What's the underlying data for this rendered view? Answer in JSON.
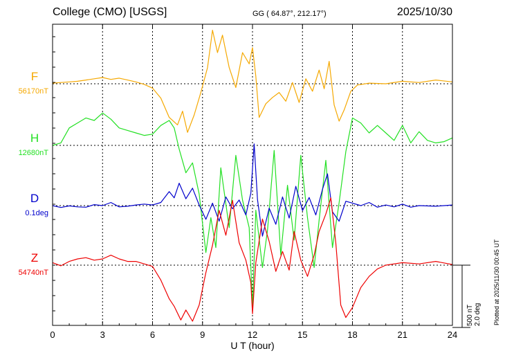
{
  "header": {
    "station": "College (CMO)  [USGS]",
    "coords": "GG ( 64.87°, 212.17°)",
    "date": "2025/10/30"
  },
  "plotted_note": "Plotted at 2025/11/30 00:45 UT",
  "chart_data": {
    "type": "line",
    "xlabel": "U T (hour)",
    "xlim": [
      0,
      24
    ],
    "xticks": [
      0,
      3,
      6,
      9,
      12,
      15,
      18,
      21,
      24
    ],
    "grid": true,
    "scale_bar": {
      "label_nT": "500 nT",
      "label_deg": "2.0 deg",
      "nT": 500,
      "deg": 2.0
    },
    "series": [
      {
        "name": "F",
        "baseline_label": "56170nT",
        "baseline": 56170,
        "unit": "nT",
        "color": "#f5a800",
        "points": [
          [
            0,
            56175
          ],
          [
            0.5,
            56180
          ],
          [
            1,
            56185
          ],
          [
            1.5,
            56190
          ],
          [
            2,
            56200
          ],
          [
            2.5,
            56210
          ],
          [
            3,
            56220
          ],
          [
            3.5,
            56205
          ],
          [
            4,
            56215
          ],
          [
            4.5,
            56200
          ],
          [
            5,
            56185
          ],
          [
            5.5,
            56165
          ],
          [
            6,
            56135
          ],
          [
            6.5,
            56055
          ],
          [
            7,
            55900
          ],
          [
            7.5,
            55840
          ],
          [
            7.8,
            55950
          ],
          [
            8.1,
            55780
          ],
          [
            8.5,
            55920
          ],
          [
            8.9,
            56100
          ],
          [
            9.3,
            56300
          ],
          [
            9.6,
            56600
          ],
          [
            9.9,
            56420
          ],
          [
            10.2,
            56560
          ],
          [
            10.6,
            56300
          ],
          [
            11,
            56140
          ],
          [
            11.4,
            56420
          ],
          [
            11.8,
            56330
          ],
          [
            12,
            56460
          ],
          [
            12.2,
            56230
          ],
          [
            12.4,
            55900
          ],
          [
            12.8,
            56010
          ],
          [
            13.2,
            56060
          ],
          [
            13.6,
            56100
          ],
          [
            14,
            56030
          ],
          [
            14.4,
            56180
          ],
          [
            14.8,
            56020
          ],
          [
            15.2,
            56210
          ],
          [
            15.6,
            56110
          ],
          [
            16,
            56280
          ],
          [
            16.3,
            56130
          ],
          [
            16.6,
            56350
          ],
          [
            16.9,
            56000
          ],
          [
            17.2,
            55870
          ],
          [
            17.5,
            55960
          ],
          [
            17.9,
            56110
          ],
          [
            18.3,
            56160
          ],
          [
            19,
            56175
          ],
          [
            20,
            56170
          ],
          [
            21,
            56190
          ],
          [
            22,
            56180
          ],
          [
            23,
            56200
          ],
          [
            24,
            56185
          ]
        ]
      },
      {
        "name": "H",
        "baseline_label": "12680nT",
        "baseline": 12680,
        "unit": "nT",
        "color": "#22e022",
        "points": [
          [
            0,
            12680
          ],
          [
            0.5,
            12700
          ],
          [
            1,
            12820
          ],
          [
            1.5,
            12860
          ],
          [
            2,
            12900
          ],
          [
            2.5,
            12880
          ],
          [
            3,
            12940
          ],
          [
            3.5,
            12890
          ],
          [
            4,
            12820
          ],
          [
            4.5,
            12800
          ],
          [
            5,
            12780
          ],
          [
            5.5,
            12760
          ],
          [
            6,
            12770
          ],
          [
            6.5,
            12840
          ],
          [
            7,
            12880
          ],
          [
            7.3,
            12820
          ],
          [
            7.6,
            12650
          ],
          [
            8,
            12460
          ],
          [
            8.4,
            12540
          ],
          [
            8.8,
            12290
          ],
          [
            9.2,
            11820
          ],
          [
            9.5,
            12100
          ],
          [
            9.8,
            11860
          ],
          [
            10.1,
            12500
          ],
          [
            10.6,
            12020
          ],
          [
            11,
            12600
          ],
          [
            11.4,
            12240
          ],
          [
            11.8,
            12020
          ],
          [
            12,
            11370
          ],
          [
            12.2,
            12160
          ],
          [
            12.6,
            11700
          ],
          [
            12.9,
            12000
          ],
          [
            13.3,
            12640
          ],
          [
            13.7,
            11800
          ],
          [
            14.1,
            12360
          ],
          [
            14.5,
            11920
          ],
          [
            14.9,
            12600
          ],
          [
            15.3,
            12100
          ],
          [
            15.7,
            11700
          ],
          [
            16,
            12080
          ],
          [
            16.4,
            12560
          ],
          [
            16.8,
            11860
          ],
          [
            17.2,
            12220
          ],
          [
            17.6,
            12630
          ],
          [
            18,
            12900
          ],
          [
            18.5,
            12860
          ],
          [
            19,
            12780
          ],
          [
            19.5,
            12840
          ],
          [
            20,
            12780
          ],
          [
            20.5,
            12720
          ],
          [
            21,
            12840
          ],
          [
            21.5,
            12700
          ],
          [
            22,
            12790
          ],
          [
            22.5,
            12720
          ],
          [
            23,
            12700
          ],
          [
            23.5,
            12710
          ],
          [
            24,
            12740
          ]
        ]
      },
      {
        "name": "D",
        "baseline_label": "0.1deg",
        "baseline": 0.1,
        "unit": "deg",
        "color": "#0000cc",
        "points": [
          [
            0,
            0.1
          ],
          [
            0.5,
            0.04
          ],
          [
            1,
            0.09
          ],
          [
            1.5,
            0.06
          ],
          [
            2,
            0.05
          ],
          [
            2.5,
            0.13
          ],
          [
            3,
            0.1
          ],
          [
            3.5,
            0.2
          ],
          [
            4,
            0.06
          ],
          [
            4.5,
            0.08
          ],
          [
            5,
            0.12
          ],
          [
            5.5,
            0.15
          ],
          [
            6,
            0.12
          ],
          [
            6.5,
            0.2
          ],
          [
            7,
            0.55
          ],
          [
            7.3,
            0.35
          ],
          [
            7.6,
            0.82
          ],
          [
            8,
            0.32
          ],
          [
            8.4,
            0.66
          ],
          [
            8.8,
            0.12
          ],
          [
            9.2,
            -0.34
          ],
          [
            9.6,
            0.18
          ],
          [
            10,
            -0.4
          ],
          [
            10.4,
            0.38
          ],
          [
            10.8,
            0.0
          ],
          [
            11.2,
            0.28
          ],
          [
            11.6,
            -0.2
          ],
          [
            11.9,
            0.5
          ],
          [
            12.1,
            2.08
          ],
          [
            12.3,
            0.3
          ],
          [
            12.6,
            -0.88
          ],
          [
            13,
            0.02
          ],
          [
            13.4,
            -0.5
          ],
          [
            13.8,
            0.38
          ],
          [
            14.2,
            -0.3
          ],
          [
            14.6,
            0.72
          ],
          [
            15,
            -0.06
          ],
          [
            15.4,
            0.36
          ],
          [
            15.8,
            -0.2
          ],
          [
            16.2,
            0.62
          ],
          [
            16.5,
            1.12
          ],
          [
            16.8,
            -0.1
          ],
          [
            17.2,
            -0.4
          ],
          [
            17.6,
            0.24
          ],
          [
            18,
            0.18
          ],
          [
            18.5,
            0.1
          ],
          [
            19,
            0.2
          ],
          [
            19.5,
            0.05
          ],
          [
            20,
            0.12
          ],
          [
            20.5,
            0.06
          ],
          [
            21,
            0.15
          ],
          [
            21.5,
            0.05
          ],
          [
            22,
            0.1
          ],
          [
            23,
            0.08
          ],
          [
            24,
            0.12
          ]
        ]
      },
      {
        "name": "Z",
        "baseline_label": "54740nT",
        "baseline": 54740,
        "unit": "nT",
        "color": "#ee0000",
        "points": [
          [
            0,
            54760
          ],
          [
            0.5,
            54735
          ],
          [
            1,
            54770
          ],
          [
            1.5,
            54790
          ],
          [
            2,
            54800
          ],
          [
            2.5,
            54780
          ],
          [
            3,
            54790
          ],
          [
            3.5,
            54820
          ],
          [
            4,
            54790
          ],
          [
            4.5,
            54770
          ],
          [
            5,
            54770
          ],
          [
            5.5,
            54750
          ],
          [
            6,
            54730
          ],
          [
            6.5,
            54620
          ],
          [
            7,
            54470
          ],
          [
            7.3,
            54410
          ],
          [
            7.7,
            54300
          ],
          [
            8,
            54380
          ],
          [
            8.4,
            54290
          ],
          [
            8.8,
            54420
          ],
          [
            9.2,
            54680
          ],
          [
            9.6,
            54900
          ],
          [
            10,
            55180
          ],
          [
            10.4,
            54980
          ],
          [
            10.8,
            55260
          ],
          [
            11.2,
            54920
          ],
          [
            11.6,
            54780
          ],
          [
            11.9,
            54600
          ],
          [
            12,
            54350
          ],
          [
            12.2,
            54760
          ],
          [
            12.6,
            55110
          ],
          [
            13,
            54930
          ],
          [
            13.4,
            54690
          ],
          [
            13.8,
            54850
          ],
          [
            14.2,
            54700
          ],
          [
            14.5,
            55010
          ],
          [
            14.9,
            54780
          ],
          [
            15.3,
            54650
          ],
          [
            15.7,
            54820
          ],
          [
            16,
            55010
          ],
          [
            16.4,
            55150
          ],
          [
            16.7,
            55280
          ],
          [
            17,
            54920
          ],
          [
            17.3,
            54420
          ],
          [
            17.6,
            54320
          ],
          [
            18,
            54400
          ],
          [
            18.5,
            54560
          ],
          [
            19,
            54650
          ],
          [
            19.5,
            54710
          ],
          [
            20,
            54740
          ],
          [
            21,
            54760
          ],
          [
            22,
            54750
          ],
          [
            23,
            54770
          ],
          [
            24,
            54745
          ]
        ]
      }
    ]
  }
}
